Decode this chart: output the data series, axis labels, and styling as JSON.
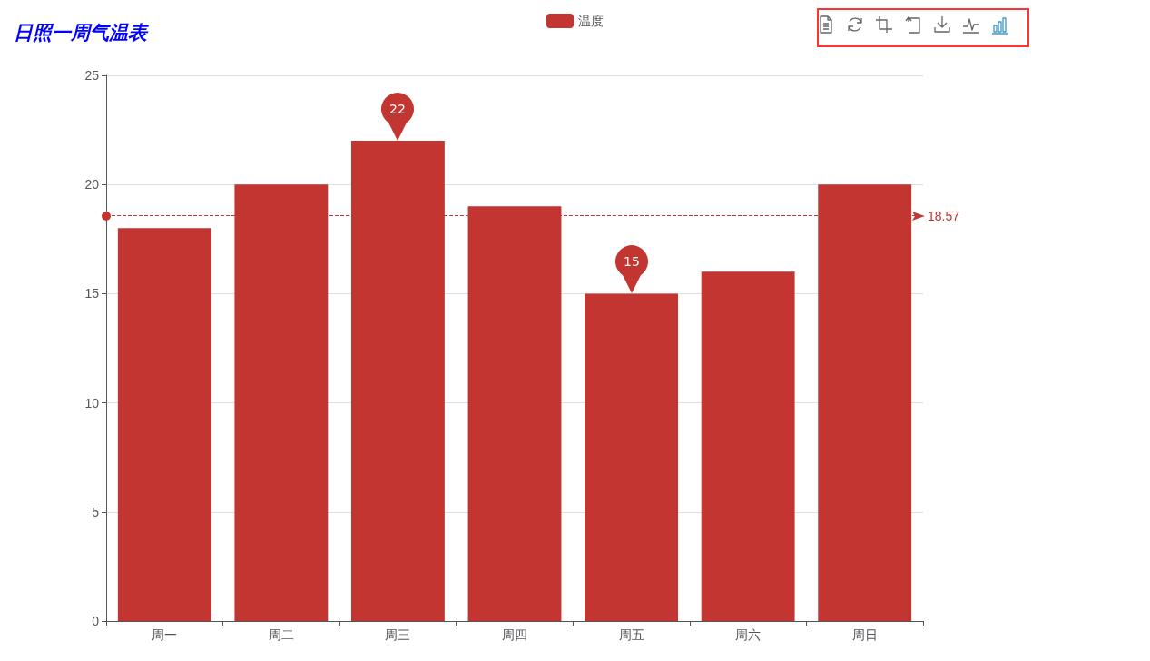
{
  "chart_data": {
    "type": "bar",
    "title": "日照一周气温表",
    "categories": [
      "周一",
      "周二",
      "周三",
      "周四",
      "周五",
      "周六",
      "周日"
    ],
    "series": [
      {
        "name": "温度",
        "color": "#c23531",
        "values": [
          18,
          20,
          22,
          19,
          15,
          16,
          20
        ]
      }
    ],
    "ylim": [
      0,
      25
    ],
    "yticks": [
      0,
      5,
      10,
      15,
      20,
      25
    ],
    "grid": "y",
    "legend": "top",
    "ref_lines": [
      {
        "axis": "y",
        "value": 18.57,
        "label": "18.57",
        "color": "#c23531",
        "line_style": "dashed"
      }
    ],
    "annotations": [
      {
        "text": "22",
        "x": "周三",
        "y": 22
      },
      {
        "text": "15",
        "x": "周五",
        "y": 15
      }
    ]
  }
}
